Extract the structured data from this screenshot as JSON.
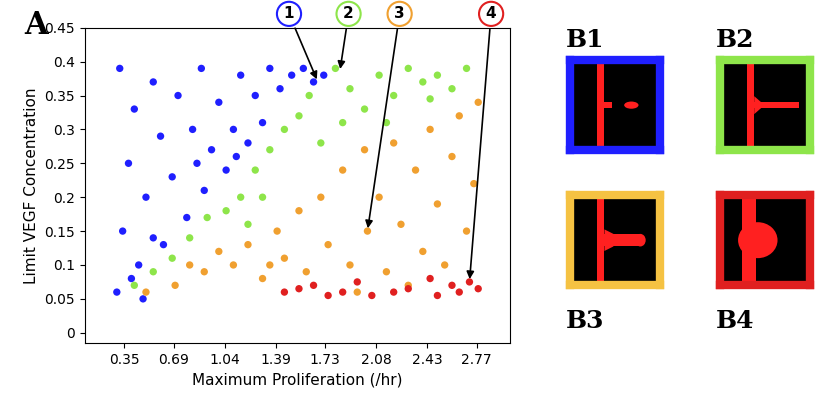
{
  "chart_data": {
    "type": "scatter",
    "x_label": "Maximum Proliferation (/hr)",
    "y_label": "Limit VEGF Concentration",
    "xlim": [
      0.08,
      3.0
    ],
    "xticks": [
      0.35,
      0.69,
      1.04,
      1.39,
      1.73,
      2.08,
      2.43,
      2.77
    ],
    "ylim": [
      -0.015,
      0.45
    ],
    "yticks": [
      0,
      0.05,
      0.1,
      0.15,
      0.2,
      0.25,
      0.3,
      0.35,
      0.4,
      0.45
    ],
    "grid": false,
    "marker": "o",
    "series": [
      {
        "color": "#1f1fff",
        "x": [
          0.32,
          0.3,
          0.34,
          0.38,
          0.42,
          0.45,
          0.5,
          0.55,
          0.6,
          0.62,
          0.68,
          0.72,
          0.78,
          0.82,
          0.88,
          0.9,
          0.95,
          1.0,
          1.05,
          1.1,
          1.15,
          1.2,
          1.25,
          1.3,
          1.35,
          1.42,
          1.5,
          1.58,
          1.65,
          1.72,
          0.4,
          0.55,
          0.48,
          0.85,
          1.12
        ],
        "values": [
          0.39,
          0.06,
          0.15,
          0.25,
          0.33,
          0.1,
          0.2,
          0.37,
          0.29,
          0.13,
          0.23,
          0.35,
          0.17,
          0.3,
          0.39,
          0.21,
          0.27,
          0.34,
          0.24,
          0.3,
          0.38,
          0.28,
          0.35,
          0.31,
          0.39,
          0.36,
          0.38,
          0.39,
          0.37,
          0.38,
          0.08,
          0.14,
          0.05,
          0.25,
          0.26
        ]
      },
      {
        "color": "#8ee54a",
        "x": [
          0.42,
          0.55,
          0.68,
          0.8,
          0.92,
          1.05,
          1.15,
          1.25,
          1.35,
          1.45,
          1.55,
          1.62,
          1.8,
          1.9,
          2.0,
          2.1,
          2.2,
          2.3,
          2.4,
          2.5,
          2.6,
          2.7,
          1.7,
          1.85,
          2.15,
          1.3,
          1.2,
          2.45
        ],
        "values": [
          0.07,
          0.09,
          0.11,
          0.14,
          0.17,
          0.18,
          0.2,
          0.24,
          0.27,
          0.3,
          0.32,
          0.35,
          0.39,
          0.36,
          0.33,
          0.38,
          0.35,
          0.39,
          0.37,
          0.38,
          0.36,
          0.39,
          0.28,
          0.31,
          0.31,
          0.2,
          0.16,
          0.345
        ]
      },
      {
        "color": "#f0a030",
        "x": [
          0.5,
          0.7,
          0.9,
          1.0,
          1.1,
          1.2,
          1.3,
          1.4,
          1.45,
          1.55,
          1.6,
          1.7,
          1.75,
          1.85,
          1.9,
          2.0,
          2.02,
          2.1,
          2.15,
          2.2,
          2.25,
          2.35,
          2.4,
          2.45,
          2.5,
          2.55,
          2.6,
          2.65,
          2.7,
          2.75,
          2.78,
          0.8,
          1.35,
          1.95,
          2.3
        ],
        "values": [
          0.06,
          0.07,
          0.09,
          0.12,
          0.1,
          0.13,
          0.08,
          0.15,
          0.11,
          0.18,
          0.09,
          0.2,
          0.13,
          0.24,
          0.1,
          0.27,
          0.15,
          0.2,
          0.09,
          0.28,
          0.16,
          0.24,
          0.12,
          0.3,
          0.19,
          0.1,
          0.26,
          0.32,
          0.15,
          0.22,
          0.34,
          0.1,
          0.1,
          0.06,
          0.07
        ]
      },
      {
        "color": "#e02020",
        "x": [
          1.45,
          1.55,
          1.65,
          1.75,
          1.85,
          1.95,
          2.05,
          2.2,
          2.3,
          2.45,
          2.5,
          2.6,
          2.65,
          2.72,
          2.78
        ],
        "values": [
          0.06,
          0.065,
          0.07,
          0.055,
          0.06,
          0.075,
          0.055,
          0.06,
          0.065,
          0.08,
          0.055,
          0.07,
          0.06,
          0.075,
          0.065
        ]
      }
    ],
    "annotations": [
      {
        "text": "1",
        "color": "#1f1fff",
        "x": 1.68,
        "y": 0.37
      },
      {
        "text": "2",
        "color": "#8ee54a",
        "x": 1.83,
        "y": 0.385
      },
      {
        "text": "3",
        "color": "#f0a030",
        "x": 2.02,
        "y": 0.15
      },
      {
        "text": "4",
        "color": "#e02020",
        "x": 2.72,
        "y": 0.075
      }
    ]
  },
  "panel_label": "A",
  "panels": [
    {
      "label": "B1",
      "color": "#1f1fff"
    },
    {
      "label": "B2",
      "color": "#8ee54a"
    },
    {
      "label": "B3",
      "color": "#f5c242"
    },
    {
      "label": "B4",
      "color": "#e02020"
    }
  ]
}
